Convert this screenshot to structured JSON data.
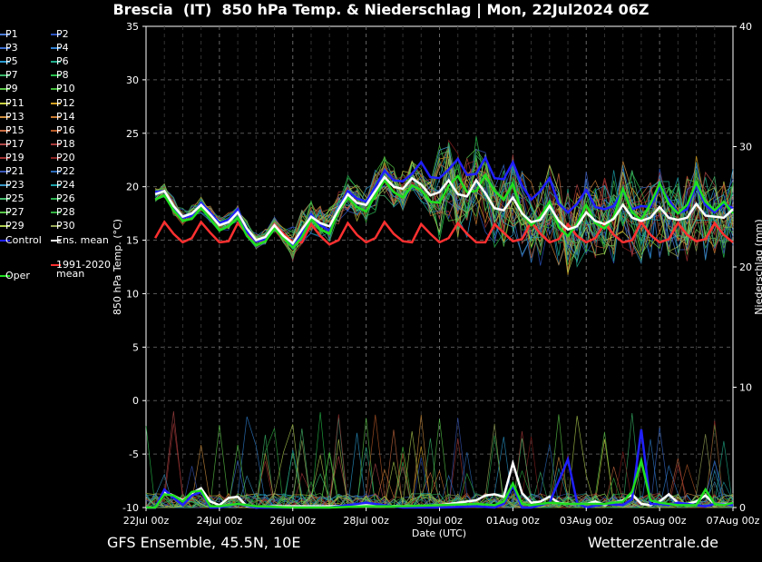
{
  "header": {
    "title": "Brescia  (IT)  850 hPa Temp. & Niederschlag | Mon, 22Jul2024 06Z"
  },
  "footer": {
    "source": "GFS Ensemble, 45.5N, 10E",
    "site": "Wetterzentrale.de"
  },
  "legend": {
    "members": [
      {
        "name": "P1",
        "color": "#4a7bd6"
      },
      {
        "name": "P2",
        "color": "#2a52be"
      },
      {
        "name": "P3",
        "color": "#3a6ccc"
      },
      {
        "name": "P4",
        "color": "#2f7fd0"
      },
      {
        "name": "P5",
        "color": "#2a9bd0"
      },
      {
        "name": "P6",
        "color": "#1fae8a"
      },
      {
        "name": "P7",
        "color": "#39b86a"
      },
      {
        "name": "P8",
        "color": "#26c04a"
      },
      {
        "name": "P9",
        "color": "#5cc848"
      },
      {
        "name": "P10",
        "color": "#40b838"
      },
      {
        "name": "P11",
        "color": "#c8d040"
      },
      {
        "name": "P12",
        "color": "#d4a020"
      },
      {
        "name": "P13",
        "color": "#d09040"
      },
      {
        "name": "P14",
        "color": "#c87a30"
      },
      {
        "name": "P15",
        "color": "#c86a40"
      },
      {
        "name": "P16",
        "color": "#b85a28"
      },
      {
        "name": "P17",
        "color": "#b04848"
      },
      {
        "name": "P18",
        "color": "#a83838"
      },
      {
        "name": "P19",
        "color": "#a03030"
      },
      {
        "name": "P20",
        "color": "#882020"
      },
      {
        "name": "P21",
        "color": "#3a58b8"
      },
      {
        "name": "P22",
        "color": "#2a6ab8"
      },
      {
        "name": "P23",
        "color": "#3a98c8"
      },
      {
        "name": "P24",
        "color": "#1aa0a8"
      },
      {
        "name": "P25",
        "color": "#48c070"
      },
      {
        "name": "P26",
        "color": "#2ab050"
      },
      {
        "name": "P27",
        "color": "#58c848"
      },
      {
        "name": "P28",
        "color": "#30b040"
      },
      {
        "name": "P29",
        "color": "#b0d050"
      },
      {
        "name": "P30",
        "color": "#98a858"
      }
    ],
    "control": {
      "name": "Control",
      "color": "#2020ff"
    },
    "ens_mean": {
      "name": "Ens. mean",
      "color": "#ffffff"
    },
    "climate": {
      "name": "1991-2020\nmean",
      "line1": "1991-2020",
      "line2": "mean",
      "color": "#ff3030"
    },
    "oper": {
      "name": "Oper",
      "color": "#20e020"
    }
  },
  "chart_data": {
    "type": "line",
    "xlabel": "Date (UTC)",
    "ylabel": "850 hPa Temp. (°C)",
    "y2label": "Niederschlag (mm)",
    "ylim": [
      -10,
      35
    ],
    "y2lim": [
      0,
      40
    ],
    "yticks": [
      -10,
      -5,
      0,
      5,
      10,
      15,
      20,
      25,
      30,
      35
    ],
    "y2ticks": [
      0,
      10,
      20,
      30,
      40
    ],
    "xlim": [
      0,
      16
    ],
    "xticks": [
      {
        "x": 0,
        "label": "22Jul 00z"
      },
      {
        "x": 2,
        "label": "24Jul 00z"
      },
      {
        "x": 4,
        "label": "26Jul 00z"
      },
      {
        "x": 6,
        "label": "28Jul 00z"
      },
      {
        "x": 8,
        "label": "30Jul 00z"
      },
      {
        "x": 10,
        "label": "01Aug 00z"
      },
      {
        "x": 12,
        "label": "03Aug 00z"
      },
      {
        "x": 14,
        "label": "05Aug 00z"
      },
      {
        "x": 16,
        "label": "07Aug 00z"
      }
    ],
    "grid": true,
    "x_unit_note": "x values are days since 22Jul 00z",
    "series": [
      {
        "name": "Ens. mean",
        "color": "#ffffff",
        "width": 2.5,
        "x": [
          0.25,
          0.5,
          0.75,
          1,
          1.25,
          1.5,
          1.75,
          2,
          2.25,
          2.5,
          2.75,
          3,
          3.25,
          3.5,
          3.75,
          4,
          4.25,
          4.5,
          4.75,
          5,
          5.25,
          5.5,
          5.75,
          6,
          6.25,
          6.5,
          6.75,
          7,
          7.25,
          7.5,
          7.75,
          8,
          8.25,
          8.5,
          8.75,
          9,
          9.25,
          9.5,
          9.75,
          10,
          10.25,
          10.5,
          10.75,
          11,
          11.25,
          11.5,
          11.75,
          12,
          12.25,
          12.5,
          12.75,
          13,
          13.25,
          13.5,
          13.75,
          14,
          14.25,
          14.5,
          14.75,
          15,
          15.25,
          15.5,
          15.75,
          16
        ],
        "values": [
          19.3,
          19.6,
          18.2,
          17.2,
          17.5,
          18.3,
          17.4,
          16.4,
          16.7,
          17.6,
          16.1,
          15.0,
          15.3,
          16.4,
          15.4,
          14.7,
          16.0,
          17.2,
          16.6,
          16.3,
          17.9,
          19.3,
          18.5,
          18.3,
          19.6,
          20.9,
          20.0,
          19.8,
          20.8,
          20.2,
          19.2,
          19.5,
          20.6,
          19.3,
          19.1,
          20.6,
          19.4,
          18.0,
          17.8,
          19.0,
          17.5,
          16.7,
          16.9,
          18.2,
          16.8,
          16.0,
          16.3,
          17.6,
          16.8,
          16.5,
          17.0,
          18.3,
          17.1,
          16.8,
          17.1,
          18.1,
          17.1,
          16.9,
          17.1,
          18.4,
          17.3,
          17.2,
          17.1,
          17.9
        ]
      },
      {
        "name": "1991-2020 mean",
        "color": "#ff3030",
        "width": 2.5,
        "x": [
          0.25,
          0.5,
          0.75,
          1,
          1.25,
          1.5,
          1.75,
          2,
          2.25,
          2.5,
          2.75,
          3,
          3.25,
          3.5,
          3.75,
          4,
          4.25,
          4.5,
          4.75,
          5,
          5.25,
          5.5,
          5.75,
          6,
          6.25,
          6.5,
          6.75,
          7,
          7.25,
          7.5,
          7.75,
          8,
          8.25,
          8.5,
          8.75,
          9,
          9.25,
          9.5,
          9.75,
          10,
          10.25,
          10.5,
          10.75,
          11,
          11.25,
          11.5,
          11.75,
          12,
          12.25,
          12.5,
          12.75,
          13,
          13.25,
          13.5,
          13.75,
          14,
          14.25,
          14.5,
          14.75,
          15,
          15.25,
          15.5,
          15.75,
          16
        ],
        "values": [
          15.2,
          16.7,
          15.6,
          14.8,
          15.2,
          16.7,
          15.7,
          14.8,
          14.9,
          16.6,
          15.6,
          14.9,
          15.0,
          16.5,
          15.6,
          14.8,
          14.8,
          16.5,
          15.4,
          14.6,
          15.0,
          16.6,
          15.5,
          14.8,
          15.2,
          16.7,
          15.6,
          14.9,
          14.8,
          16.5,
          15.6,
          14.8,
          15.2,
          16.6,
          15.6,
          14.8,
          14.8,
          16.5,
          15.7,
          14.9,
          15.1,
          16.7,
          15.6,
          14.8,
          15.1,
          16.5,
          15.4,
          14.8,
          15.2,
          16.6,
          15.5,
          14.8,
          15.0,
          16.7,
          15.5,
          14.8,
          15.1,
          16.6,
          15.5,
          14.9,
          15.1,
          16.6,
          15.5,
          14.8
        ]
      },
      {
        "name": "Control",
        "color": "#2020ff",
        "width": 2.5,
        "x": [
          0.25,
          0.5,
          0.75,
          1,
          1.25,
          1.5,
          1.75,
          2,
          2.25,
          2.5,
          2.75,
          3,
          3.25,
          3.5,
          3.75,
          4,
          4.25,
          4.5,
          4.75,
          5,
          5.25,
          5.5,
          5.75,
          6,
          6.25,
          6.5,
          6.75,
          7,
          7.25,
          7.5,
          7.75,
          8,
          8.25,
          8.5,
          8.75,
          9,
          9.25,
          9.5,
          9.75,
          10,
          10.25,
          10.5,
          10.75,
          11,
          11.25,
          11.5,
          11.75,
          12,
          12.25,
          12.5,
          12.75,
          13,
          13.25,
          13.5,
          13.75,
          14,
          14.25,
          14.5,
          14.75,
          15,
          15.25,
          15.5,
          15.75,
          16
        ],
        "values": [
          19.5,
          19.6,
          18.1,
          17.1,
          17.3,
          18.5,
          17.6,
          16.6,
          16.9,
          17.9,
          15.8,
          14.9,
          15.1,
          16.4,
          15.4,
          14.5,
          15.6,
          17.4,
          16.4,
          15.9,
          18.0,
          19.6,
          18.9,
          18.6,
          20.0,
          21.5,
          20.6,
          20.5,
          21.2,
          22.3,
          20.9,
          20.8,
          21.6,
          22.6,
          21.1,
          21.2,
          22.7,
          20.8,
          20.7,
          22.3,
          20.1,
          18.8,
          19.6,
          20.8,
          18.4,
          17.6,
          18.4,
          19.7,
          18.1,
          17.9,
          18.2,
          19.6,
          17.9,
          18.2,
          18.1,
          20.0,
          18.8,
          17.5,
          17.9,
          20.2,
          18.3,
          17.6,
          18.4,
          18.0
        ]
      },
      {
        "name": "Oper",
        "color": "#20e020",
        "width": 2.5,
        "x": [
          0.25,
          0.5,
          0.75,
          1,
          1.25,
          1.5,
          1.75,
          2,
          2.25,
          2.5,
          2.75,
          3,
          3.25,
          3.5,
          3.75,
          4,
          4.25,
          4.5,
          4.75,
          5,
          5.25,
          5.5,
          5.75,
          6,
          6.25,
          6.5,
          6.75,
          7,
          7.25,
          7.5,
          7.75,
          8,
          8.25,
          8.5,
          8.75,
          9,
          9.25,
          9.5,
          9.75,
          10,
          10.25,
          10.5,
          10.75,
          11,
          11.25,
          11.5,
          11.75,
          12,
          12.25,
          12.5,
          12.75,
          13,
          13.25,
          13.5,
          13.75,
          14,
          14.25,
          14.5,
          14.75,
          15,
          15.25,
          15.5,
          15.75,
          16
        ],
        "values": [
          18.8,
          19.2,
          17.8,
          16.8,
          17.0,
          18.0,
          17.0,
          15.9,
          16.3,
          17.1,
          15.4,
          14.5,
          14.9,
          16.1,
          15.2,
          14.3,
          15.3,
          17.0,
          16.0,
          15.6,
          17.8,
          19.0,
          18.1,
          17.7,
          19.2,
          20.6,
          19.5,
          19.0,
          20.1,
          19.7,
          18.6,
          18.5,
          20.1,
          21.0,
          19.5,
          19.6,
          21.1,
          19.6,
          18.8,
          20.3,
          17.5,
          16.4,
          17.2,
          18.6,
          16.2,
          15.4,
          16.5,
          18.3,
          16.6,
          16.1,
          17.2,
          19.8,
          17.6,
          16.9,
          18.4,
          20.3,
          18.4,
          17.5,
          18.3,
          20.4,
          18.6,
          17.8,
          18.6,
          17.5
        ]
      }
    ],
    "precip_series": [
      {
        "name": "Ens. mean",
        "color": "#ffffff",
        "x": [
          0,
          0.25,
          0.5,
          0.75,
          1,
          1.25,
          1.5,
          1.75,
          2,
          2.25,
          2.5,
          2.75,
          3,
          3.5,
          4,
          5,
          6,
          7,
          8,
          8.5,
          9,
          9.25,
          9.5,
          9.75,
          10,
          10.25,
          10.5,
          10.75,
          11,
          11.25,
          11.5,
          12,
          12.25,
          12.5,
          13,
          13.25,
          13.5,
          13.75,
          14,
          14.25,
          14.5,
          14.75,
          15,
          15.25,
          15.5,
          16
        ],
        "values": [
          0,
          0,
          1.3,
          1.0,
          0.6,
          1.2,
          1.6,
          0.5,
          0.2,
          0.8,
          0.9,
          0.1,
          0,
          0.1,
          0.1,
          0.1,
          0.2,
          0.1,
          0.2,
          0.4,
          0.6,
          1.0,
          1.1,
          0.9,
          3.7,
          1.2,
          0.4,
          0.5,
          0.9,
          0.4,
          0.3,
          0.3,
          0.5,
          0.2,
          0.6,
          1.1,
          0.3,
          0.2,
          0.5,
          1.1,
          0.4,
          0.3,
          0.5,
          1.0,
          0.3,
          0.3
        ]
      },
      {
        "name": "Control",
        "color": "#2020ff",
        "x": [
          0,
          0.25,
          0.5,
          0.75,
          1,
          1.25,
          1.5,
          1.75,
          2,
          2.5,
          3,
          4,
          5,
          6,
          7,
          8,
          9,
          9.5,
          9.75,
          10,
          10.25,
          10.5,
          11,
          11.5,
          11.75,
          12,
          12.5,
          13,
          13.25,
          13.5,
          13.75,
          14,
          14.25,
          14.5,
          15,
          15.25,
          15.5,
          16
        ],
        "values": [
          0,
          0,
          1.5,
          0.8,
          0.2,
          1.0,
          1.3,
          0,
          0,
          0.3,
          0,
          0,
          0,
          0.4,
          0,
          0,
          0.1,
          0,
          0.3,
          1.8,
          0,
          0,
          0.4,
          4.0,
          0.4,
          0,
          0.3,
          0.2,
          0.7,
          6.5,
          0.3,
          0.3,
          0.2,
          0.4,
          0.2,
          0.1,
          0.3,
          0.2
        ]
      },
      {
        "name": "Oper",
        "color": "#20e020",
        "x": [
          0,
          0.25,
          0.5,
          0.75,
          1,
          1.25,
          1.5,
          1.75,
          2,
          2.5,
          3,
          4,
          5,
          6,
          7,
          8,
          9,
          9.5,
          9.75,
          10,
          10.25,
          10.5,
          11,
          11.5,
          12,
          12.5,
          13,
          13.25,
          13.5,
          13.75,
          14,
          14.25,
          14.5,
          15,
          15.25,
          15.5,
          15.75,
          16
        ],
        "values": [
          0,
          0,
          1.1,
          1.0,
          0.5,
          1.3,
          1.4,
          0.1,
          0.1,
          0.3,
          0.1,
          0,
          0,
          0.1,
          0.1,
          0.2,
          0.3,
          0.2,
          0.5,
          2.0,
          0.3,
          0.2,
          0.4,
          0.3,
          0.3,
          0.3,
          0.5,
          1.3,
          3.9,
          0.6,
          0.4,
          0.3,
          0.2,
          0.2,
          1.5,
          0.3,
          0.2,
          0.4
        ]
      }
    ]
  }
}
